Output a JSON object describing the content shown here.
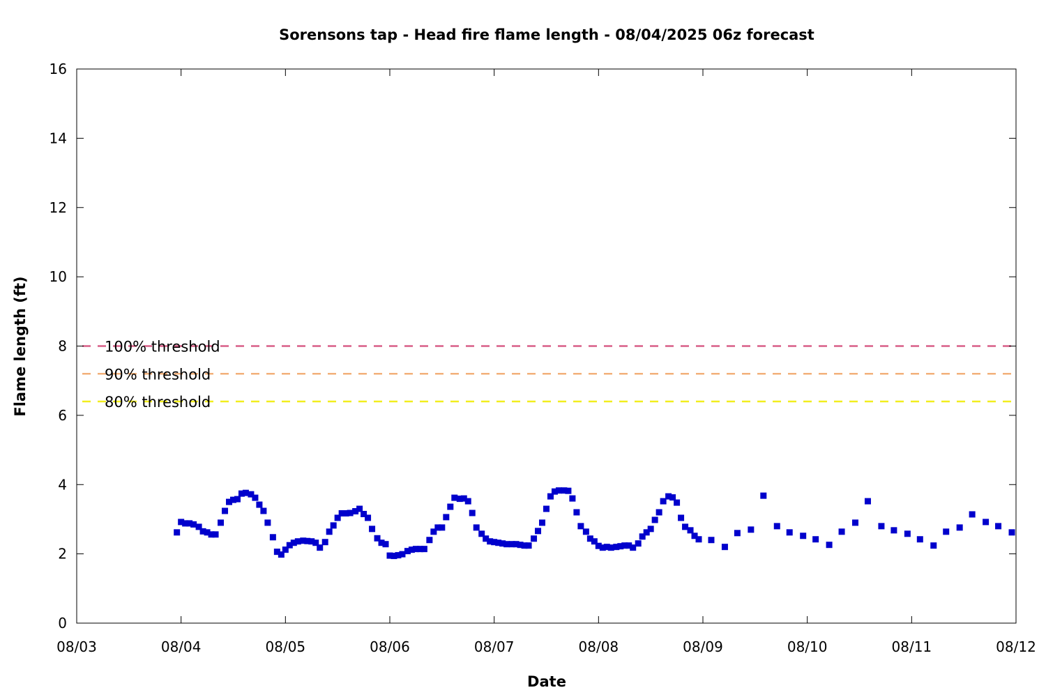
{
  "chart_data": {
    "type": "scatter",
    "title": "Sorensons tap - Head fire flame length - 08/04/2025 06z forecast",
    "xlabel": "Date",
    "ylabel": "Flame length (ft)",
    "x_tick_labels": [
      "08/03",
      "08/04",
      "08/05",
      "08/06",
      "08/07",
      "08/08",
      "08/09",
      "08/10",
      "08/11",
      "08/12"
    ],
    "xlim": [
      0,
      9
    ],
    "y_ticks": [
      0,
      2,
      4,
      6,
      8,
      10,
      12,
      14,
      16
    ],
    "ylim": [
      0,
      16
    ],
    "grid": false,
    "point_color": "#0000cc",
    "thresholds": [
      {
        "label": "100% threshold",
        "value": 8.0,
        "color": "#d95f87"
      },
      {
        "label": "90% threshold",
        "value": 7.2,
        "color": "#f2b07a"
      },
      {
        "label": "80% threshold",
        "value": 6.4,
        "color": "#f2ee1e"
      }
    ],
    "series": [
      {
        "x": [
          0.96,
          1.0,
          1.04,
          1.08,
          1.12,
          1.17,
          1.21,
          1.25,
          1.29,
          1.33,
          1.38,
          1.42,
          1.46,
          1.5,
          1.54,
          1.58,
          1.62,
          1.67,
          1.71,
          1.75,
          1.79,
          1.83,
          1.88,
          1.92,
          1.96,
          2.0,
          2.04,
          2.08,
          2.12,
          2.17,
          2.21,
          2.25,
          2.29,
          2.33,
          2.38,
          2.42,
          2.46,
          2.5,
          2.54,
          2.58,
          2.62,
          2.67,
          2.71,
          2.75,
          2.79,
          2.83,
          2.88,
          2.92,
          2.96,
          3.0,
          3.04,
          3.08,
          3.12,
          3.17,
          3.21,
          3.25,
          3.29,
          3.33,
          3.38,
          3.42,
          3.46,
          3.5,
          3.54,
          3.58,
          3.62,
          3.67,
          3.71,
          3.75,
          3.79,
          3.83,
          3.88,
          3.92,
          3.96,
          4.0,
          4.04,
          4.08,
          4.12,
          4.17,
          4.21,
          4.25,
          4.29,
          4.33,
          4.38,
          4.42,
          4.46,
          4.5,
          4.54,
          4.58,
          4.62,
          4.67,
          4.71,
          4.75,
          4.79,
          4.83,
          4.88,
          4.92,
          4.96,
          5.0,
          5.04,
          5.08,
          5.12,
          5.17,
          5.21,
          5.25,
          5.29,
          5.33,
          5.38,
          5.42,
          5.46,
          5.5,
          5.54,
          5.58,
          5.62,
          5.67,
          5.71,
          5.75,
          5.79,
          5.83,
          5.88,
          5.92,
          5.96,
          6.08,
          6.21,
          6.33,
          6.46,
          6.58,
          6.71,
          6.83,
          6.96,
          7.08,
          7.21,
          7.33,
          7.46,
          7.58,
          7.71,
          7.83,
          7.96,
          8.08,
          8.21,
          8.33,
          8.46,
          8.58,
          8.71,
          8.83,
          8.96
        ],
        "y": [
          2.62,
          2.92,
          2.88,
          2.88,
          2.85,
          2.78,
          2.65,
          2.62,
          2.56,
          2.56,
          2.9,
          3.24,
          3.5,
          3.56,
          3.58,
          3.74,
          3.76,
          3.72,
          3.62,
          3.42,
          3.24,
          2.9,
          2.48,
          2.06,
          1.98,
          2.12,
          2.25,
          2.32,
          2.36,
          2.38,
          2.37,
          2.36,
          2.32,
          2.18,
          2.34,
          2.64,
          2.82,
          3.04,
          3.17,
          3.17,
          3.18,
          3.23,
          3.3,
          3.15,
          3.04,
          2.72,
          2.45,
          2.32,
          2.28,
          1.95,
          1.94,
          1.96,
          1.99,
          2.08,
          2.12,
          2.14,
          2.14,
          2.14,
          2.4,
          2.64,
          2.76,
          2.76,
          3.06,
          3.36,
          3.62,
          3.59,
          3.6,
          3.52,
          3.18,
          2.76,
          2.58,
          2.44,
          2.36,
          2.34,
          2.32,
          2.3,
          2.28,
          2.28,
          2.28,
          2.26,
          2.24,
          2.24,
          2.44,
          2.66,
          2.9,
          3.3,
          3.66,
          3.8,
          3.83,
          3.83,
          3.82,
          3.6,
          3.2,
          2.8,
          2.64,
          2.44,
          2.36,
          2.23,
          2.18,
          2.2,
          2.18,
          2.2,
          2.22,
          2.24,
          2.24,
          2.18,
          2.3,
          2.5,
          2.62,
          2.72,
          2.98,
          3.2,
          3.52,
          3.66,
          3.63,
          3.48,
          3.04,
          2.78,
          2.68,
          2.52,
          2.42,
          2.4,
          2.2,
          2.6,
          2.7,
          3.68,
          2.8,
          2.62,
          2.52,
          2.42,
          2.26,
          2.64,
          2.9,
          3.52,
          2.8,
          2.68,
          2.58,
          2.42,
          2.24,
          2.64,
          2.76,
          3.14,
          2.92,
          2.8,
          2.62
        ]
      }
    ]
  }
}
